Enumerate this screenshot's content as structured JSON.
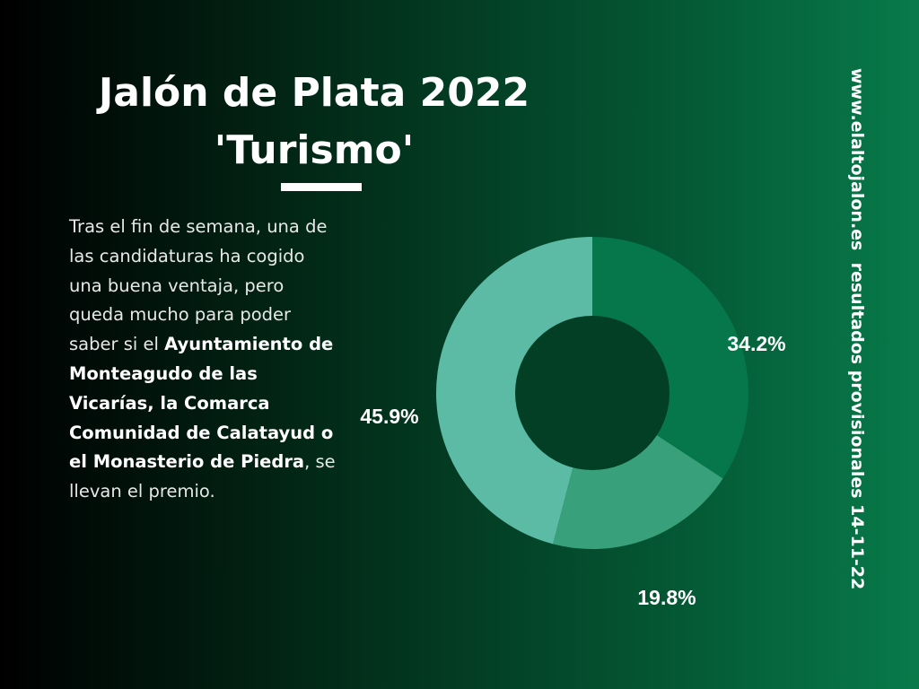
{
  "header": {
    "title_line1": "Jalón de Plata 2022",
    "title_line2": "'Turismo'"
  },
  "body": {
    "p1": "Tras el fin de semana, una de las candidaturas ha cogido una buena ventaja, pero queda mucho para poder saber si el ",
    "bold": "Ayuntamiento de Monteagudo de las Vicarías, la Comarca Comunidad de Calatayud o el Monasterio de Piedra",
    "p2": ", se llevan el premio."
  },
  "sidebar": {
    "vertical_text": "www.elaltojalon.es  resultados provisionales 14-11-22"
  },
  "colors": {
    "slice1": "#05774a",
    "slice2": "#38a07a",
    "slice3": "#5cbba5",
    "hole": "#033f25"
  },
  "chart_data": {
    "type": "pie",
    "donut": true,
    "values": [
      34.2,
      19.8,
      45.9
    ],
    "labels": [
      "34.2%",
      "19.8%",
      "45.9%"
    ]
  }
}
